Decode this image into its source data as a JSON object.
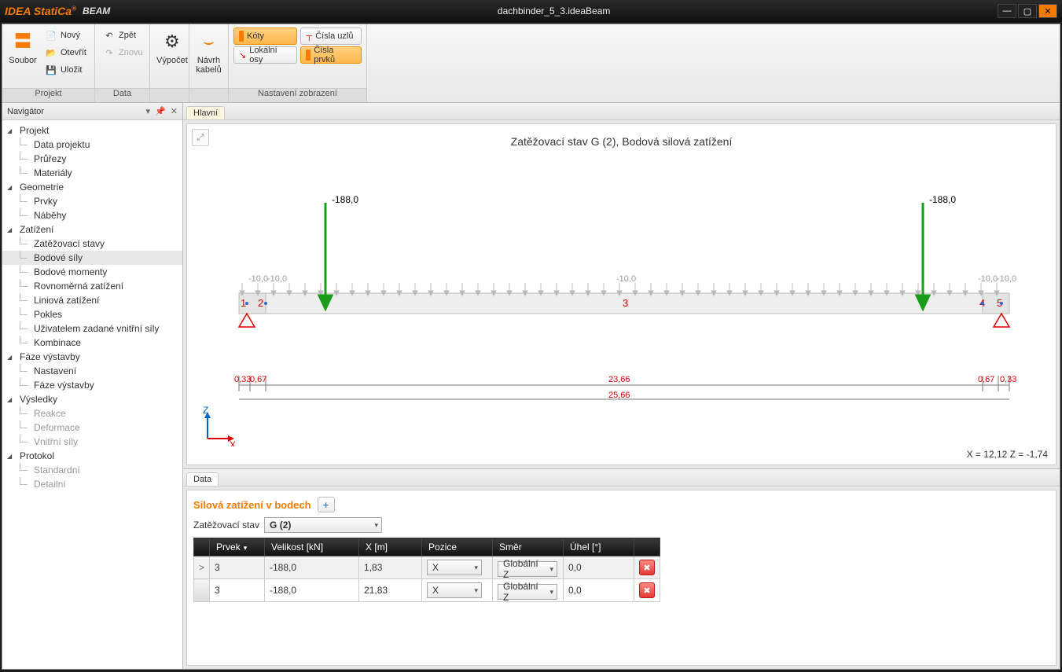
{
  "title": {
    "brand": "IDEA StatiCa",
    "sub": "BEAM",
    "file": "dachbinder_5_3.ideaBeam"
  },
  "ribbon": {
    "file": {
      "label": "Soubor",
      "group": "Projekt",
      "new": "Nový",
      "open": "Otevřít",
      "save": "Uložit"
    },
    "data": {
      "group": "Data",
      "undo": "Zpět",
      "redo": "Znovu"
    },
    "calc": {
      "label": "Výpočet"
    },
    "design": {
      "label": "Návrh kabelů"
    },
    "view": {
      "group": "Nastavení zobrazení",
      "dims": "Kóty",
      "nodes": "Čísla uzlů",
      "lcs": "Lokální osy",
      "members": "Čísla prvků"
    }
  },
  "nav": {
    "title": "Navigátor",
    "groups": {
      "project": {
        "label": "Projekt",
        "items": [
          "Data projektu",
          "Průřezy",
          "Materiály"
        ]
      },
      "geometry": {
        "label": "Geometrie",
        "items": [
          "Prvky",
          "Náběhy"
        ]
      },
      "loads": {
        "label": "Zatížení",
        "items": [
          "Zatěžovací stavy",
          "Bodové síly",
          "Bodové momenty",
          "Rovnoměrná zatížení",
          "Liniová zatížení",
          "Pokles",
          "Uživatelem zadané vnitřní síly",
          "Kombinace"
        ],
        "selected": 1
      },
      "stages": {
        "label": "Fáze výstavby",
        "items": [
          "Nastavení",
          "Fáze výstavby"
        ]
      },
      "results": {
        "label": "Výsledky",
        "items": [
          "Reakce",
          "Deformace",
          "Vnitřní síly"
        ],
        "dim": true
      },
      "protocol": {
        "label": "Protokol",
        "items": [
          "Standardní",
          "Detailní"
        ],
        "dim": true
      }
    }
  },
  "canvas": {
    "tab": "Hlavní",
    "title": "Zatěžovací stav G (2), Bodová silová zatížení",
    "coords": "X = 12,12  Z = -1,74",
    "forces": {
      "left_label": "-188,0",
      "right_label": "-188,0"
    },
    "dist_labels": {
      "l1": "-10,0",
      "l2": "-10,0",
      "mid": "-10,0",
      "r1": "-10,0",
      "r2": "-10,0"
    },
    "nodes": [
      "1",
      "2",
      "3",
      "4",
      "5"
    ],
    "dims": {
      "a": "0,33",
      "b": "0,67",
      "c": "23,66",
      "d": "0,67",
      "e": "0,33",
      "total": "25,66"
    },
    "axes": {
      "z": "Z",
      "x": "X"
    }
  },
  "data": {
    "tab": "Data",
    "section": "Silová zatížení v bodech",
    "ls_label": "Zatěžovací stav",
    "ls_value": "G (2)",
    "columns": [
      "Prvek",
      "Velikost [kN]",
      "X [m]",
      "Pozice",
      "Směr",
      "Úhel [°]"
    ],
    "rows": [
      {
        "member": "3",
        "mag": "-188,0",
        "x": "1,83",
        "pos": "X",
        "dir": "Globální Z",
        "ang": "0,0"
      },
      {
        "member": "3",
        "mag": "-188,0",
        "x": "21,83",
        "pos": "X",
        "dir": "Globální Z",
        "ang": "0,0"
      }
    ]
  }
}
